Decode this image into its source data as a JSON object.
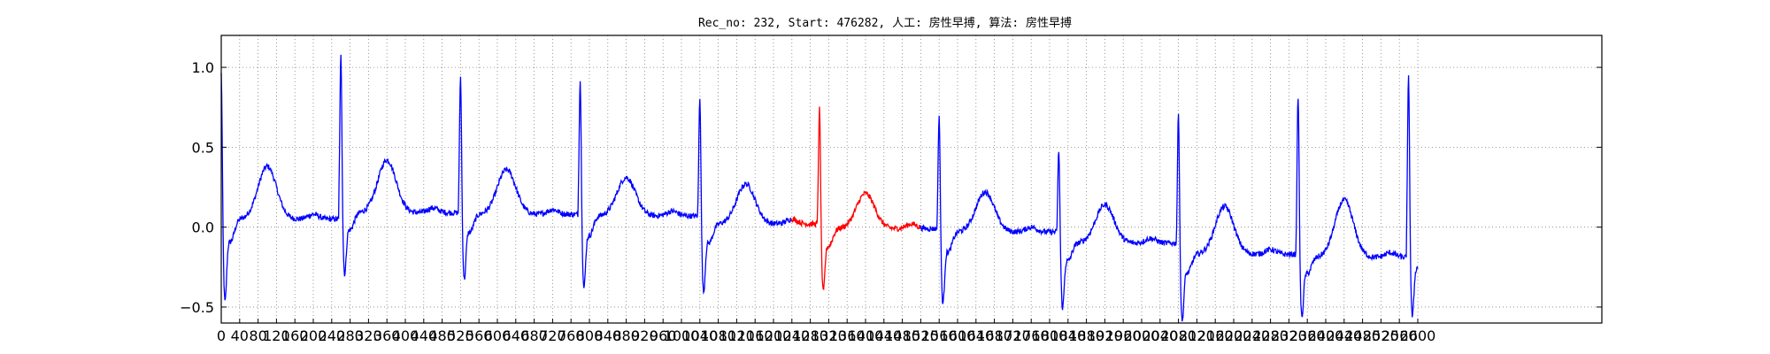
{
  "chart_data": {
    "type": "line",
    "title": "Rec_no: 232, Start: 476282, 人工: 房性早搏, 算法: 房性早搏",
    "xlabel": "",
    "ylabel": "",
    "xlim": [
      0,
      3000
    ],
    "ylim": [
      -0.6,
      1.2
    ],
    "grid": true,
    "grid_style": "dotted",
    "yticks": [
      -0.5,
      0.0,
      0.5,
      1.0
    ],
    "ytick_labels": [
      "−0.5",
      "0.0",
      "0.5",
      "1.0"
    ],
    "xtick_step": 40,
    "xtick_max": 2600,
    "colors": {
      "normal": "#0000ff",
      "highlight": "#ff0000",
      "grid": "#808080",
      "frame": "#000000"
    },
    "highlight_range": [
      1240,
      1520
    ],
    "beats": [
      {
        "r": 0,
        "r_amp": 1.0,
        "s_amp": -0.42,
        "t_peak": 0.38,
        "baseline": 0.05
      },
      {
        "r": 260,
        "r_amp": 1.1,
        "s_amp": -0.26,
        "t_peak": 0.42,
        "baseline": 0.09
      },
      {
        "r": 520,
        "r_amp": 0.97,
        "s_amp": -0.29,
        "t_peak": 0.36,
        "baseline": 0.08
      },
      {
        "r": 780,
        "r_amp": 0.95,
        "s_amp": -0.34,
        "t_peak": 0.31,
        "baseline": 0.07
      },
      {
        "r": 1040,
        "r_amp": 0.85,
        "s_amp": -0.37,
        "t_peak": 0.27,
        "baseline": 0.02
      },
      {
        "r": 1300,
        "r_amp": 0.77,
        "s_amp": -0.37,
        "t_peak": 0.21,
        "baseline": -0.01
      },
      {
        "r": 1560,
        "r_amp": 0.73,
        "s_amp": -0.44,
        "t_peak": 0.22,
        "baseline": -0.03
      },
      {
        "r": 1820,
        "r_amp": 0.51,
        "s_amp": -0.47,
        "t_peak": 0.14,
        "baseline": -0.1
      },
      {
        "r": 2080,
        "r_amp": 0.74,
        "s_amp": -0.55,
        "t_peak": 0.13,
        "baseline": -0.17
      },
      {
        "r": 2340,
        "r_amp": 0.85,
        "s_amp": -0.53,
        "t_peak": 0.17,
        "baseline": -0.19
      },
      {
        "r": 2580,
        "r_amp": 0.97,
        "s_amp": -0.52,
        "t_peak": null,
        "baseline": -0.14
      }
    ],
    "series_end": 2600
  }
}
